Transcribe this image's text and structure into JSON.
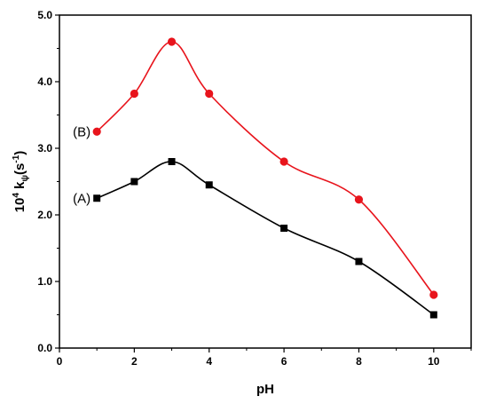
{
  "chart_data": {
    "type": "line",
    "title": "",
    "xlabel": "pH",
    "ylabel": {
      "prefix": "10",
      "prefix_superscript": "4",
      "symbol": "k",
      "symbol_subscript": "ψ",
      "unit_open": "(s",
      "unit_superscript": "-1",
      "unit_close": ")"
    },
    "xlim": [
      0,
      11
    ],
    "ylim": [
      0.0,
      5.0
    ],
    "x_ticks": [
      0,
      2,
      4,
      6,
      8,
      10
    ],
    "y_ticks": [
      "0.0",
      "1.0",
      "2.0",
      "3.0",
      "4.0",
      "5.0"
    ],
    "grid": false,
    "legend": "none",
    "series": [
      {
        "name": "(A)",
        "color": "#000000",
        "marker": "square",
        "x": [
          1,
          2,
          3,
          4,
          6,
          8,
          10
        ],
        "y": [
          2.25,
          2.5,
          2.8,
          2.45,
          1.8,
          1.3,
          0.5
        ]
      },
      {
        "name": "(B)",
        "color": "#e8141c",
        "marker": "circle",
        "x": [
          1,
          2,
          3,
          4,
          6,
          8,
          10
        ],
        "y": [
          3.25,
          3.82,
          4.6,
          3.82,
          2.8,
          2.23,
          0.8
        ]
      }
    ]
  }
}
